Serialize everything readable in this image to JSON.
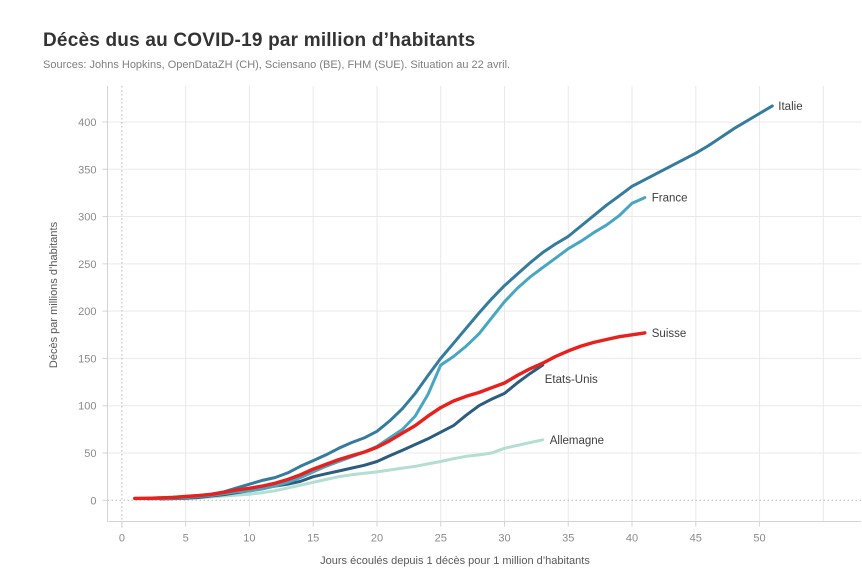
{
  "header": {
    "title": "Décès dus au COVID-19 par million d’habitants",
    "subtitle": "Sources: Johns Hopkins, OpenDataZH (CH), Sciensano (BE), FHM (SUE). Situation au 22 avril."
  },
  "colors": {
    "title_text": "#333333",
    "subtitle_text": "#7f7f7f",
    "tick_label": "#8a8a8a",
    "axis_title": "#595959",
    "series_label": "#3f3f3f",
    "grid": "#e9e9e9",
    "axis_line": "#d4d4d4",
    "reference_dotted": "#b9b9b9",
    "background": "#ffffff"
  },
  "chart_data": {
    "type": "line",
    "title": "Décès dus au COVID-19 par million d’habitants",
    "subtitle": "Sources: Johns Hopkins, OpenDataZH (CH), Sciensano (BE), FHM (SUE). Situation au 22 avril.",
    "xlabel": "Jours écoulés depuis 1 décès pour 1 million d’habitants",
    "ylabel": "Décès par millions d’habitants",
    "xlim": [
      0,
      55
    ],
    "ylim": [
      0,
      430
    ],
    "x_ticks": [
      0,
      5,
      10,
      15,
      20,
      25,
      30,
      35,
      40,
      45,
      50
    ],
    "x_gridlines": [
      5,
      10,
      15,
      20,
      25,
      30,
      35,
      40,
      45,
      50,
      55
    ],
    "y_ticks": [
      0,
      50,
      100,
      150,
      200,
      250,
      300,
      350,
      400
    ],
    "grid": true,
    "legend_position": "line-end-labels",
    "reference_lines": {
      "x": 0,
      "y": 0
    },
    "series": [
      {
        "name": "italie",
        "label": "Italie",
        "color": "#357b9e",
        "points": [
          [
            1,
            2
          ],
          [
            2,
            2.2
          ],
          [
            3,
            2.6
          ],
          [
            4,
            3.2
          ],
          [
            5,
            4
          ],
          [
            6,
            5
          ],
          [
            7,
            6.6
          ],
          [
            8,
            9
          ],
          [
            9,
            13
          ],
          [
            10,
            17
          ],
          [
            11,
            21
          ],
          [
            12,
            24
          ],
          [
            13,
            29
          ],
          [
            14,
            36
          ],
          [
            15,
            42
          ],
          [
            16,
            48
          ],
          [
            17,
            55
          ],
          [
            18,
            61
          ],
          [
            19,
            66
          ],
          [
            20,
            73
          ],
          [
            21,
            84
          ],
          [
            22,
            97
          ],
          [
            23,
            113
          ],
          [
            24,
            132
          ],
          [
            25,
            150
          ],
          [
            26,
            166
          ],
          [
            27,
            182
          ],
          [
            28,
            198
          ],
          [
            29,
            213
          ],
          [
            30,
            227
          ],
          [
            31,
            239
          ],
          [
            32,
            251
          ],
          [
            33,
            262
          ],
          [
            34,
            271
          ],
          [
            35,
            279
          ],
          [
            36,
            290
          ],
          [
            37,
            301
          ],
          [
            38,
            312
          ],
          [
            39,
            322
          ],
          [
            40,
            332
          ],
          [
            41,
            339
          ],
          [
            42,
            346
          ],
          [
            43,
            353
          ],
          [
            44,
            360
          ],
          [
            45,
            367
          ],
          [
            46,
            375
          ],
          [
            47,
            384
          ],
          [
            48,
            393
          ],
          [
            49,
            401
          ],
          [
            50,
            409
          ],
          [
            51,
            417
          ]
        ]
      },
      {
        "name": "france",
        "label": "France",
        "color": "#47a7c2",
        "points": [
          [
            2,
            1.5
          ],
          [
            3,
            1.8
          ],
          [
            4,
            2.2
          ],
          [
            5,
            3
          ],
          [
            6,
            4
          ],
          [
            7,
            5.2
          ],
          [
            8,
            7
          ],
          [
            9,
            9
          ],
          [
            10,
            9.8
          ],
          [
            11,
            12
          ],
          [
            12,
            15
          ],
          [
            13,
            19
          ],
          [
            14,
            24
          ],
          [
            15,
            30
          ],
          [
            16,
            36
          ],
          [
            17,
            41
          ],
          [
            18,
            46
          ],
          [
            19,
            51
          ],
          [
            20,
            57
          ],
          [
            21,
            66
          ],
          [
            22,
            75
          ],
          [
            23,
            89
          ],
          [
            24,
            112
          ],
          [
            25,
            143
          ],
          [
            26,
            152
          ],
          [
            27,
            163
          ],
          [
            28,
            176
          ],
          [
            29,
            193
          ],
          [
            30,
            210
          ],
          [
            31,
            224
          ],
          [
            32,
            236
          ],
          [
            33,
            246
          ],
          [
            34,
            256
          ],
          [
            35,
            266
          ],
          [
            36,
            274
          ],
          [
            37,
            283
          ],
          [
            38,
            291
          ],
          [
            39,
            301
          ],
          [
            40,
            314
          ],
          [
            41,
            320
          ]
        ]
      },
      {
        "name": "suisse",
        "label": "Suisse",
        "color": "#e8211d",
        "points": [
          [
            1,
            2
          ],
          [
            2,
            2.1
          ],
          [
            3,
            2.4
          ],
          [
            4,
            3
          ],
          [
            5,
            4
          ],
          [
            6,
            5
          ],
          [
            7,
            6.2
          ],
          [
            8,
            8.5
          ],
          [
            9,
            11
          ],
          [
            10,
            12.7
          ],
          [
            11,
            15
          ],
          [
            12,
            18
          ],
          [
            13,
            22
          ],
          [
            14,
            27
          ],
          [
            15,
            33
          ],
          [
            16,
            38
          ],
          [
            17,
            43
          ],
          [
            18,
            47
          ],
          [
            19,
            51
          ],
          [
            20,
            56
          ],
          [
            21,
            63
          ],
          [
            22,
            71
          ],
          [
            23,
            79
          ],
          [
            24,
            89
          ],
          [
            25,
            98
          ],
          [
            26,
            105
          ],
          [
            27,
            110
          ],
          [
            28,
            114
          ],
          [
            29,
            119
          ],
          [
            30,
            124
          ],
          [
            31,
            132
          ],
          [
            32,
            139
          ],
          [
            33,
            145
          ],
          [
            34,
            152
          ],
          [
            35,
            158
          ],
          [
            36,
            163
          ],
          [
            37,
            167
          ],
          [
            38,
            170
          ],
          [
            39,
            173
          ],
          [
            40,
            175
          ],
          [
            41,
            177
          ]
        ]
      },
      {
        "name": "etats-unis",
        "label": "Etats-Unis",
        "color": "#2c5c7f",
        "points": [
          [
            3,
            1.5
          ],
          [
            4,
            1.8
          ],
          [
            5,
            2.2
          ],
          [
            6,
            3
          ],
          [
            7,
            4.5
          ],
          [
            8,
            6
          ],
          [
            9,
            8
          ],
          [
            10,
            10
          ],
          [
            11,
            13
          ],
          [
            12,
            15
          ],
          [
            13,
            17
          ],
          [
            14,
            20
          ],
          [
            15,
            25
          ],
          [
            16,
            28
          ],
          [
            17,
            31
          ],
          [
            18,
            34
          ],
          [
            19,
            37
          ],
          [
            20,
            41
          ],
          [
            21,
            47
          ],
          [
            22,
            53
          ],
          [
            23,
            59
          ],
          [
            24,
            65
          ],
          [
            25,
            72
          ],
          [
            26,
            79
          ],
          [
            27,
            90
          ],
          [
            28,
            100
          ],
          [
            29,
            107
          ],
          [
            30,
            113
          ],
          [
            31,
            124
          ],
          [
            32,
            134
          ],
          [
            33,
            143
          ]
        ]
      },
      {
        "name": "allemagne",
        "label": "Allemagne",
        "color": "#b3ded1",
        "points": [
          [
            3,
            1.5
          ],
          [
            4,
            1.8
          ],
          [
            5,
            2.2
          ],
          [
            6,
            2.8
          ],
          [
            7,
            3.6
          ],
          [
            8,
            4.5
          ],
          [
            9,
            5.5
          ],
          [
            10,
            6.5
          ],
          [
            11,
            8
          ],
          [
            12,
            10
          ],
          [
            13,
            13
          ],
          [
            14,
            16
          ],
          [
            15,
            19
          ],
          [
            16,
            22
          ],
          [
            17,
            25
          ],
          [
            18,
            27
          ],
          [
            19,
            28.5
          ],
          [
            20,
            30
          ],
          [
            21,
            32
          ],
          [
            22,
            34
          ],
          [
            23,
            36
          ],
          [
            24,
            38.5
          ],
          [
            25,
            41
          ],
          [
            26,
            44
          ],
          [
            27,
            46.5
          ],
          [
            28,
            48
          ],
          [
            29,
            50
          ],
          [
            30,
            55
          ],
          [
            31,
            58
          ],
          [
            32,
            61
          ],
          [
            33,
            64
          ]
        ]
      }
    ]
  }
}
